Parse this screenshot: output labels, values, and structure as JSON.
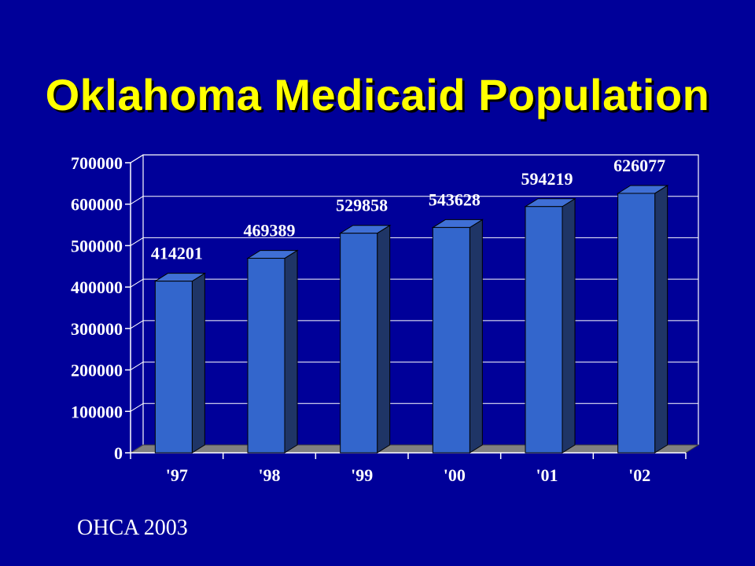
{
  "title": "Oklahoma Medicaid Population",
  "source": "OHCA 2003",
  "colors": {
    "background": "#000099",
    "title": "#FFFF00",
    "bar_front": "#3366CC",
    "bar_side": "#1F3566",
    "bar_top": "#3F6FD6",
    "floor": "#808080",
    "axis": "#FFFFFF"
  },
  "chart_data": {
    "type": "bar",
    "style": "3d-column",
    "categories": [
      "'97",
      "'98",
      "'99",
      "'00",
      "'01",
      "'02"
    ],
    "values": [
      414201,
      469389,
      529858,
      543628,
      594219,
      626077
    ],
    "data_labels": [
      "414201",
      "469389",
      "529858",
      "543628",
      "594219",
      "626077"
    ],
    "yticks": [
      0,
      100000,
      200000,
      300000,
      400000,
      500000,
      600000,
      700000
    ],
    "ytick_labels": [
      "0",
      "100000",
      "200000",
      "300000",
      "400000",
      "500000",
      "600000",
      "700000"
    ],
    "ylim": [
      0,
      700000
    ],
    "grid": true,
    "legend": "none"
  }
}
